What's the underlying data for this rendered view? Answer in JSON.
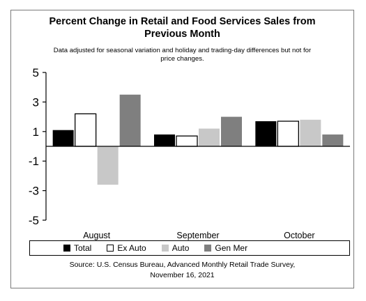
{
  "chart_data": {
    "type": "bar",
    "title": [
      "Percent Change in Retail and Food Services Sales from",
      "Previous Month"
    ],
    "subtitle": [
      "Data adjusted for seasonal variation and holiday and trading-day differences but not for",
      "price changes."
    ],
    "categories": [
      "August",
      "September",
      "October"
    ],
    "series": [
      {
        "name": "Total",
        "values": [
          1.1,
          0.8,
          1.7
        ],
        "color": "#000000"
      },
      {
        "name": "Ex Auto",
        "values": [
          2.2,
          0.7,
          1.7
        ],
        "color": "#ffffff"
      },
      {
        "name": "Auto",
        "values": [
          -2.6,
          1.2,
          1.8
        ],
        "color": "#c8c8c8"
      },
      {
        "name": "Gen Mer",
        "values": [
          3.5,
          2.0,
          0.8
        ],
        "color": "#7f7f7f"
      }
    ],
    "ylim": [
      -5,
      5
    ],
    "yticks": [
      "5",
      "3",
      "1",
      "-1",
      "-3",
      "-5"
    ],
    "ytick_values": [
      5,
      3,
      1,
      -1,
      -3,
      -5
    ],
    "legend_placement": "bottom",
    "grid": false,
    "source": [
      "Source: U.S. Census Bureau, Advanced Monthly Retail Trade Survey,",
      "November 16, 2021"
    ]
  }
}
